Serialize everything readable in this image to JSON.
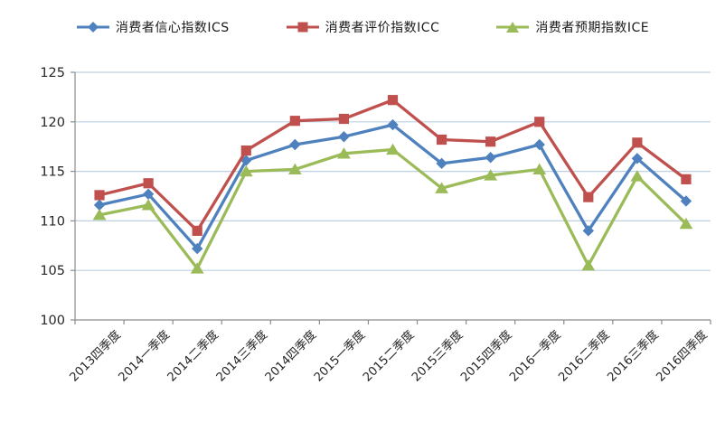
{
  "chart_data": {
    "type": "line",
    "title": "",
    "categories": [
      "2013四季度",
      "2014一季度",
      "2014二季度",
      "2014三季度",
      "2014四季度",
      "2015一季度",
      "2015二季度",
      "2015三季度",
      "2015四季度",
      "2016一季度",
      "2016二季度",
      "2016三季度",
      "2016四季度"
    ],
    "series": [
      {
        "name": "消费者信心指数ICS",
        "marker": "diamond",
        "color": "#4E81BD",
        "values": [
          111.6,
          112.7,
          107.2,
          116.1,
          117.7,
          118.5,
          119.7,
          115.8,
          116.4,
          117.7,
          109.0,
          116.3,
          112.0
        ]
      },
      {
        "name": "消费者评价指数ICC",
        "marker": "square",
        "color": "#C0504D",
        "values": [
          112.6,
          113.8,
          109.0,
          117.1,
          120.1,
          120.3,
          122.2,
          118.2,
          118.0,
          120.0,
          112.4,
          117.9,
          114.2
        ]
      },
      {
        "name": "消费者预期指数ICE",
        "marker": "triangle",
        "color": "#9BBB59",
        "values": [
          110.6,
          111.6,
          105.2,
          115.0,
          115.2,
          116.8,
          117.2,
          113.3,
          114.6,
          115.2,
          105.5,
          114.5,
          109.7
        ]
      }
    ],
    "xlabel": "",
    "ylabel": "",
    "ylim": [
      100,
      125
    ],
    "y_ticks": [
      100,
      105,
      110,
      115,
      120,
      125
    ],
    "grid": "horizontal-major",
    "legend_position": "top",
    "x_label_rotation_deg": -45
  },
  "style": {
    "background_color": "#FFFFFF",
    "gridline_color": "#BDD0E4",
    "axis_color": "#8C8C8C",
    "tick_label_color": "#262626",
    "legend_text_color": "#1A1A1A"
  }
}
